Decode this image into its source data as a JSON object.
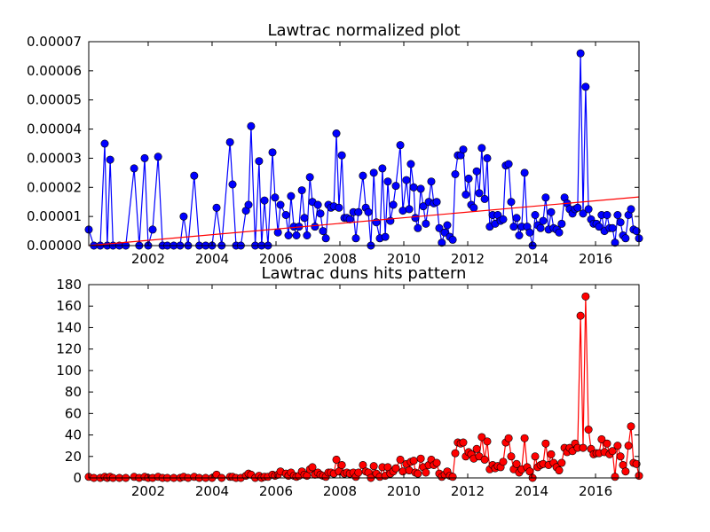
{
  "chart_data": [
    {
      "type": "line",
      "title": "Lawtrac normalized plot",
      "x": [
        2000.14,
        2000.3,
        2000.5,
        2000.64,
        2000.72,
        2000.81,
        2000.9,
        2001.1,
        2001.3,
        2001.56,
        2001.72,
        2001.89,
        2002.0,
        2002.14,
        2002.31,
        2002.45,
        2002.6,
        2002.8,
        2003.0,
        2003.11,
        2003.25,
        2003.44,
        2003.6,
        2003.8,
        2004.0,
        2004.14,
        2004.3,
        2004.56,
        2004.64,
        2004.75,
        2004.9,
        2005.06,
        2005.14,
        2005.22,
        2005.35,
        2005.47,
        2005.55,
        2005.64,
        2005.75,
        2005.89,
        2005.97,
        2006.06,
        2006.14,
        2006.31,
        2006.39,
        2006.47,
        2006.56,
        2006.64,
        2006.72,
        2006.81,
        2006.89,
        2006.97,
        2007.06,
        2007.14,
        2007.22,
        2007.31,
        2007.39,
        2007.47,
        2007.56,
        2007.64,
        2007.72,
        2007.81,
        2007.89,
        2007.97,
        2008.06,
        2008.14,
        2008.22,
        2008.31,
        2008.42,
        2008.5,
        2008.58,
        2008.72,
        2008.81,
        2008.89,
        2008.97,
        2009.06,
        2009.14,
        2009.25,
        2009.33,
        2009.42,
        2009.5,
        2009.58,
        2009.67,
        2009.75,
        2009.89,
        2009.97,
        2010.08,
        2010.17,
        2010.22,
        2010.31,
        2010.36,
        2010.44,
        2010.53,
        2010.61,
        2010.69,
        2010.78,
        2010.86,
        2010.94,
        2011.03,
        2011.11,
        2011.19,
        2011.28,
        2011.36,
        2011.44,
        2011.53,
        2011.61,
        2011.69,
        2011.78,
        2011.86,
        2011.94,
        2012.03,
        2012.11,
        2012.19,
        2012.28,
        2012.36,
        2012.44,
        2012.53,
        2012.61,
        2012.69,
        2012.78,
        2012.86,
        2012.94,
        2013.03,
        2013.11,
        2013.19,
        2013.28,
        2013.36,
        2013.44,
        2013.53,
        2013.61,
        2013.69,
        2013.78,
        2013.86,
        2013.94,
        2014.03,
        2014.11,
        2014.19,
        2014.28,
        2014.36,
        2014.44,
        2014.53,
        2014.61,
        2014.69,
        2014.78,
        2014.86,
        2014.94,
        2015.03,
        2015.11,
        2015.19,
        2015.28,
        2015.36,
        2015.44,
        2015.53,
        2015.61,
        2015.69,
        2015.78,
        2015.86,
        2015.94,
        2016.03,
        2016.11,
        2016.19,
        2016.28,
        2016.36,
        2016.44,
        2016.53,
        2016.61,
        2016.69,
        2016.78,
        2016.86,
        2016.94,
        2017.03,
        2017.11,
        2017.19,
        2017.28,
        2017.36
      ],
      "series": [
        {
          "color": "#0000ff",
          "marker": true,
          "values": [
            5.5e-06,
            0,
            0,
            3.5e-05,
            0,
            2.95e-05,
            0,
            0,
            0,
            2.65e-05,
            0,
            3e-05,
            0,
            5.5e-06,
            3.05e-05,
            0,
            0,
            0,
            0,
            1e-05,
            0,
            2.4e-05,
            0,
            0,
            0,
            1.3e-05,
            0,
            3.55e-05,
            2.1e-05,
            0,
            0,
            1.2e-05,
            1.4e-05,
            4.1e-05,
            0,
            2.9e-05,
            0,
            1.55e-05,
            0,
            3.2e-05,
            1.65e-05,
            4.5e-06,
            1.4e-05,
            1.05e-05,
            3.5e-06,
            1.7e-05,
            6.5e-06,
            3.5e-06,
            6.5e-06,
            1.9e-05,
            9.5e-06,
            3.5e-06,
            2.35e-05,
            1.5e-05,
            6.5e-06,
            1.4e-05,
            1.1e-05,
            5e-06,
            2.5e-06,
            1.4e-05,
            1.3e-05,
            1.35e-05,
            3.85e-05,
            1.3e-05,
            3.1e-05,
            9.5e-06,
            9.5e-06,
            9e-06,
            1.15e-05,
            2.5e-06,
            1.15e-05,
            2.4e-05,
            1.3e-05,
            1.15e-05,
            0,
            2.5e-05,
            8e-06,
            2.5e-06,
            2.65e-05,
            3e-06,
            2.2e-05,
            8.5e-06,
            1.4e-05,
            2.05e-05,
            3.45e-05,
            1.2e-05,
            2.25e-05,
            1.25e-05,
            2.8e-05,
            2e-05,
            9.5e-06,
            6e-06,
            1.95e-05,
            1.35e-05,
            7.5e-06,
            1.5e-05,
            2.2e-05,
            1.45e-05,
            1.5e-05,
            6e-06,
            1e-06,
            4.5e-06,
            7e-06,
            3e-06,
            2e-06,
            2.45e-05,
            3.1e-05,
            3.1e-05,
            3.3e-05,
            1.75e-05,
            2.3e-05,
            1.4e-05,
            1.3e-05,
            2.55e-05,
            1.8e-05,
            3.35e-05,
            1.6e-05,
            3e-05,
            6.5e-06,
            1.05e-05,
            7.5e-06,
            1.05e-05,
            8.5e-06,
            9e-06,
            2.75e-05,
            2.8e-05,
            1.5e-05,
            6.5e-06,
            9.5e-06,
            3.5e-06,
            6.5e-06,
            2.5e-05,
            6.5e-06,
            4.5e-06,
            0,
            1.05e-05,
            7e-06,
            6e-06,
            8.5e-06,
            1.65e-05,
            5.5e-06,
            1.15e-05,
            6e-06,
            5.5e-06,
            4.5e-06,
            7.5e-06,
            1.65e-05,
            1.45e-05,
            1.25e-05,
            1.1e-05,
            1.25e-05,
            1.3e-05,
            6.6e-05,
            1.1e-05,
            5.45e-05,
            1.25e-05,
            9e-06,
            7.5e-06,
            7.5e-06,
            6.5e-06,
            1.05e-05,
            5e-06,
            1.05e-05,
            6e-06,
            6e-06,
            1e-06,
            1.05e-05,
            8e-06,
            3.5e-06,
            2.5e-06,
            1.05e-05,
            1.25e-05,
            5.5e-06,
            5e-06,
            2.5e-06
          ]
        },
        {
          "color": "#ff0000",
          "marker": false,
          "x": [
            2000.14,
            2017.36
          ],
          "values": [
            0,
            1.67e-05
          ]
        }
      ],
      "xlim": [
        2000.14,
        2017.36
      ],
      "xticks": [
        2002,
        2004,
        2006,
        2008,
        2010,
        2012,
        2014,
        2016
      ],
      "ylim": [
        0,
        7e-05
      ],
      "yticks": [
        {
          "value": 0,
          "label": "0.00000"
        },
        {
          "value": 1e-05,
          "label": "0.00001"
        },
        {
          "value": 2e-05,
          "label": "0.00002"
        },
        {
          "value": 3e-05,
          "label": "0.00003"
        },
        {
          "value": 4e-05,
          "label": "0.00004"
        },
        {
          "value": 5e-05,
          "label": "0.00005"
        },
        {
          "value": 6e-05,
          "label": "0.00006"
        },
        {
          "value": 7e-05,
          "label": "0.00007"
        }
      ]
    },
    {
      "type": "line",
      "title": "Lawtrac duns hits pattern",
      "x": [
        2000.14,
        2000.3,
        2000.5,
        2000.64,
        2000.72,
        2000.81,
        2000.9,
        2001.1,
        2001.3,
        2001.56,
        2001.72,
        2001.89,
        2002.0,
        2002.14,
        2002.31,
        2002.45,
        2002.6,
        2002.8,
        2003.0,
        2003.11,
        2003.25,
        2003.44,
        2003.6,
        2003.8,
        2004.0,
        2004.14,
        2004.3,
        2004.56,
        2004.64,
        2004.75,
        2004.9,
        2005.06,
        2005.14,
        2005.22,
        2005.35,
        2005.47,
        2005.55,
        2005.64,
        2005.75,
        2005.89,
        2005.97,
        2006.06,
        2006.14,
        2006.31,
        2006.39,
        2006.47,
        2006.56,
        2006.64,
        2006.72,
        2006.81,
        2006.89,
        2006.97,
        2007.06,
        2007.14,
        2007.22,
        2007.31,
        2007.39,
        2007.47,
        2007.56,
        2007.64,
        2007.72,
        2007.81,
        2007.89,
        2007.97,
        2008.06,
        2008.14,
        2008.22,
        2008.31,
        2008.42,
        2008.5,
        2008.58,
        2008.72,
        2008.81,
        2008.89,
        2008.97,
        2009.06,
        2009.14,
        2009.25,
        2009.33,
        2009.42,
        2009.5,
        2009.58,
        2009.67,
        2009.75,
        2009.89,
        2009.97,
        2010.08,
        2010.17,
        2010.22,
        2010.31,
        2010.36,
        2010.44,
        2010.53,
        2010.61,
        2010.69,
        2010.78,
        2010.86,
        2010.94,
        2011.03,
        2011.11,
        2011.19,
        2011.28,
        2011.36,
        2011.44,
        2011.53,
        2011.61,
        2011.69,
        2011.78,
        2011.86,
        2011.94,
        2012.03,
        2012.11,
        2012.19,
        2012.28,
        2012.36,
        2012.44,
        2012.53,
        2012.61,
        2012.69,
        2012.78,
        2012.86,
        2012.94,
        2013.03,
        2013.11,
        2013.19,
        2013.28,
        2013.36,
        2013.44,
        2013.53,
        2013.61,
        2013.69,
        2013.78,
        2013.86,
        2013.94,
        2014.03,
        2014.11,
        2014.19,
        2014.28,
        2014.36,
        2014.44,
        2014.53,
        2014.61,
        2014.69,
        2014.78,
        2014.86,
        2014.94,
        2015.03,
        2015.11,
        2015.19,
        2015.28,
        2015.36,
        2015.44,
        2015.53,
        2015.61,
        2015.69,
        2015.78,
        2015.86,
        2015.94,
        2016.03,
        2016.11,
        2016.19,
        2016.28,
        2016.36,
        2016.44,
        2016.53,
        2016.61,
        2016.69,
        2016.78,
        2016.86,
        2016.94,
        2017.03,
        2017.11,
        2017.19,
        2017.28,
        2017.36
      ],
      "series": [
        {
          "color": "#ff0000",
          "marker": true,
          "values": [
            1,
            0,
            0,
            1,
            0,
            1,
            0,
            0,
            0,
            1,
            0,
            1,
            0,
            0,
            1,
            0,
            0,
            0,
            0,
            1,
            0,
            1,
            0,
            0,
            0,
            3,
            0,
            1,
            1,
            0,
            0,
            2,
            4,
            3,
            0,
            2,
            0,
            1,
            1,
            3,
            2,
            3,
            6,
            4,
            2,
            5,
            2,
            1,
            2,
            6,
            3,
            2,
            8,
            10,
            3,
            5,
            3,
            2,
            1,
            5,
            5,
            4,
            17,
            6,
            12,
            4,
            5,
            4,
            5,
            1,
            5,
            12,
            6,
            5,
            0,
            11,
            4,
            1,
            10,
            2,
            10,
            4,
            6,
            9,
            17,
            6,
            13,
            7,
            15,
            16,
            5,
            4,
            18,
            10,
            5,
            12,
            17,
            12,
            14,
            4,
            1,
            3,
            6,
            2,
            1,
            23,
            33,
            32,
            33,
            20,
            24,
            22,
            18,
            27,
            20,
            38,
            17,
            34,
            8,
            12,
            9,
            11,
            10,
            15,
            33,
            37,
            20,
            8,
            13,
            5,
            8,
            37,
            10,
            6,
            0,
            20,
            10,
            12,
            13,
            32,
            12,
            22,
            14,
            10,
            7,
            14,
            28,
            24,
            28,
            25,
            32,
            28,
            151,
            28,
            169,
            45,
            27,
            22,
            23,
            23,
            36,
            24,
            32,
            22,
            25,
            1,
            30,
            20,
            12,
            6,
            30,
            48,
            14,
            13,
            2
          ]
        }
      ],
      "xlim": [
        2000.14,
        2017.36
      ],
      "xticks": [
        2002,
        2004,
        2006,
        2008,
        2010,
        2012,
        2014,
        2016
      ],
      "ylim": [
        0,
        180
      ],
      "yticks": [
        0,
        20,
        40,
        60,
        80,
        100,
        120,
        140,
        160,
        180
      ]
    }
  ]
}
